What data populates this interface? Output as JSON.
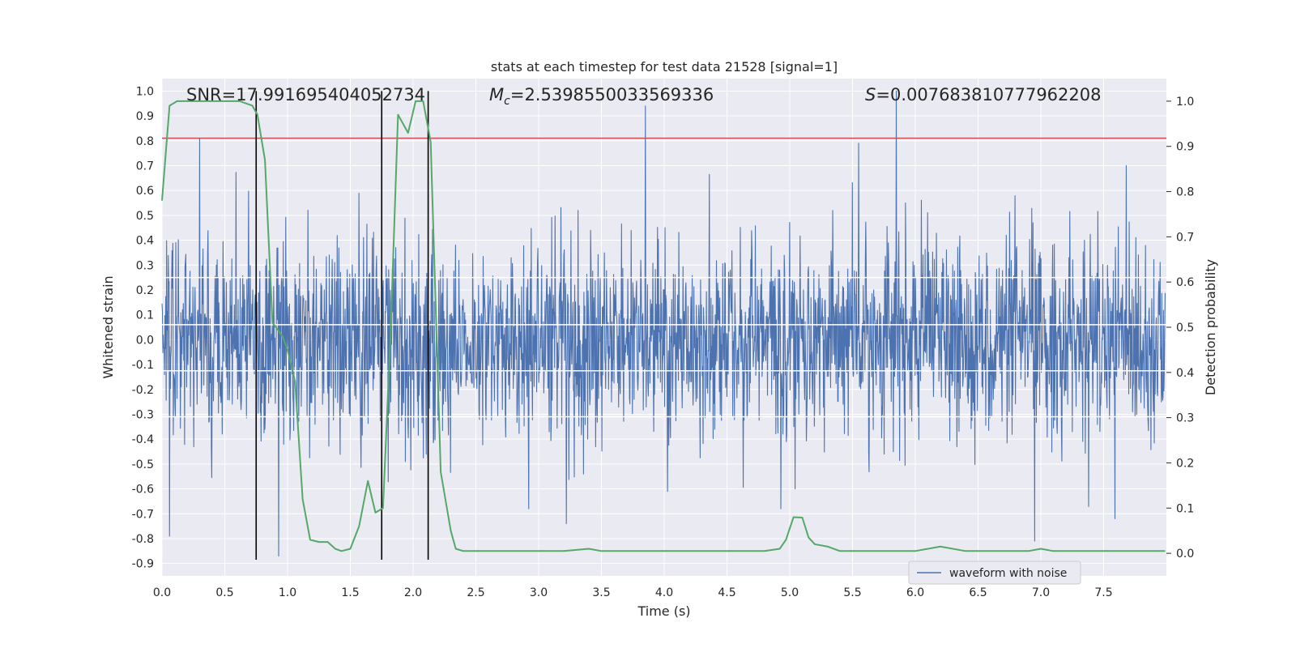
{
  "chart_data": {
    "type": "line",
    "title": "stats at each timestep for test data 21528 [signal=1]",
    "xlabel": "Time (s)",
    "ylabel": "Whitened strain",
    "y2label": "Detection probability",
    "xlim": [
      0.0,
      8.0
    ],
    "ylim": [
      -0.95,
      1.05
    ],
    "y2lim": [
      -0.05,
      1.05
    ],
    "grid": true,
    "x_ticks": [
      "0.0",
      "0.5",
      "1.0",
      "1.5",
      "2.0",
      "2.5",
      "3.0",
      "3.5",
      "4.0",
      "4.5",
      "5.0",
      "5.5",
      "6.0",
      "6.5",
      "7.0",
      "7.5"
    ],
    "y_ticks": [
      "1.0",
      "0.9",
      "0.8",
      "0.7",
      "0.6",
      "0.5",
      "0.4",
      "0.3",
      "0.2",
      "0.1",
      "0.0",
      "-0.1",
      "-0.2",
      "-0.3",
      "-0.4",
      "-0.5",
      "-0.6",
      "-0.7",
      "-0.8",
      "-0.9"
    ],
    "y2_ticks": [
      "1.0",
      "0.9",
      "0.8",
      "0.7",
      "0.6",
      "0.5",
      "0.4",
      "0.3",
      "0.2",
      "0.1",
      "0.0"
    ],
    "annotations": {
      "snr_prefix": "SNR=",
      "snr_value": "17.991695404052734",
      "mc_symbol": "M",
      "mc_subscript": "c",
      "mc_eq": "=",
      "mc_value": "2.5398550033569336",
      "s_symbol": "S",
      "s_eq": "=",
      "s_value": "0.007683810777962208"
    },
    "threshold_line": {
      "y": 0.81,
      "color": "#c44e52"
    },
    "vertical_markers": [
      0.75,
      1.75,
      2.12
    ],
    "horizontal_guides": [
      0.25,
      0.06,
      -0.125,
      -0.31
    ],
    "legend": {
      "label": "waveform with noise",
      "position": "bottom-right"
    },
    "series": [
      {
        "name": "waveform with noise",
        "color": "#4c72b0",
        "noise_amplitude_typical": 0.45,
        "peaks": [
          {
            "x": 0.3,
            "y": 0.81
          },
          {
            "x": 3.85,
            "y": 0.94
          },
          {
            "x": 5.85,
            "y": 1.0
          },
          {
            "x": 5.55,
            "y": 0.79
          },
          {
            "x": 7.68,
            "y": 0.7
          },
          {
            "x": 0.06,
            "y": -0.79
          },
          {
            "x": 0.93,
            "y": -0.87
          },
          {
            "x": 3.22,
            "y": -0.74
          },
          {
            "x": 4.93,
            "y": -0.68
          },
          {
            "x": 6.95,
            "y": -0.81
          },
          {
            "x": 7.59,
            "y": -0.72
          }
        ]
      },
      {
        "name": "detection probability",
        "color": "#55a868",
        "axis": "right",
        "x": [
          0.0,
          0.06,
          0.12,
          0.3,
          0.5,
          0.62,
          0.72,
          0.76,
          0.82,
          0.88,
          0.96,
          1.0,
          1.06,
          1.12,
          1.18,
          1.25,
          1.32,
          1.38,
          1.43,
          1.5,
          1.57,
          1.64,
          1.7,
          1.76,
          1.82,
          1.88,
          1.96,
          2.02,
          2.08,
          2.14,
          2.22,
          2.3,
          2.34,
          2.4,
          2.5,
          2.6,
          2.8,
          3.0,
          3.2,
          3.4,
          3.5,
          3.7,
          4.0,
          4.2,
          4.6,
          4.8,
          4.92,
          4.97,
          5.03,
          5.1,
          5.15,
          5.2,
          5.3,
          5.4,
          5.5,
          5.6,
          5.8,
          6.0,
          6.2,
          6.4,
          6.6,
          6.8,
          6.9,
          7.0,
          7.1,
          7.3,
          7.6,
          7.99
        ],
        "y": [
          0.78,
          0.99,
          1.0,
          1.0,
          1.0,
          1.0,
          0.99,
          0.97,
          0.87,
          0.51,
          0.48,
          0.45,
          0.38,
          0.12,
          0.03,
          0.025,
          0.025,
          0.01,
          0.005,
          0.01,
          0.06,
          0.16,
          0.09,
          0.1,
          0.48,
          0.97,
          0.93,
          1.0,
          1.0,
          0.91,
          0.18,
          0.05,
          0.01,
          0.005,
          0.005,
          0.005,
          0.005,
          0.005,
          0.005,
          0.01,
          0.005,
          0.005,
          0.005,
          0.005,
          0.005,
          0.005,
          0.01,
          0.03,
          0.08,
          0.079,
          0.035,
          0.02,
          0.015,
          0.005,
          0.005,
          0.005,
          0.005,
          0.005,
          0.015,
          0.005,
          0.005,
          0.005,
          0.005,
          0.01,
          0.005,
          0.005,
          0.005,
          0.005
        ]
      }
    ]
  }
}
